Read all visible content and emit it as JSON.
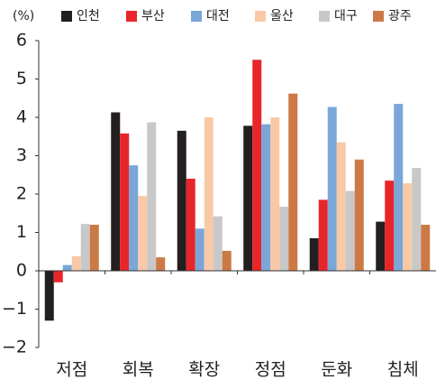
{
  "chart_data": {
    "type": "bar",
    "unit_label": "(%)",
    "categories": [
      "저점",
      "회복",
      "확장",
      "정점",
      "둔화",
      "침체"
    ],
    "series": [
      {
        "name": "인천",
        "color": "#231f20",
        "values": [
          -1.3,
          4.13,
          3.65,
          3.78,
          0.85,
          1.28
        ]
      },
      {
        "name": "부산",
        "color": "#e8262a",
        "values": [
          -0.3,
          3.58,
          2.4,
          5.5,
          1.85,
          2.35
        ]
      },
      {
        "name": "대전",
        "color": "#7aa6d8",
        "values": [
          0.15,
          2.75,
          1.1,
          3.82,
          4.27,
          4.35
        ]
      },
      {
        "name": "울산",
        "color": "#f9c9a7",
        "values": [
          0.38,
          1.95,
          4.0,
          4.0,
          3.35,
          2.28
        ]
      },
      {
        "name": "대구",
        "color": "#c8c8c8",
        "values": [
          1.22,
          3.87,
          1.42,
          1.67,
          2.08,
          2.68
        ]
      },
      {
        "name": "광주",
        "color": "#cc7a45",
        "values": [
          1.2,
          0.35,
          0.52,
          4.62,
          2.9,
          1.2
        ]
      }
    ],
    "ylim": [
      -2,
      6
    ],
    "yticks": [
      {
        "value": -2,
        "label": "−2"
      },
      {
        "value": -1,
        "label": "−1"
      },
      0,
      1,
      2,
      3,
      4,
      5,
      6
    ]
  }
}
